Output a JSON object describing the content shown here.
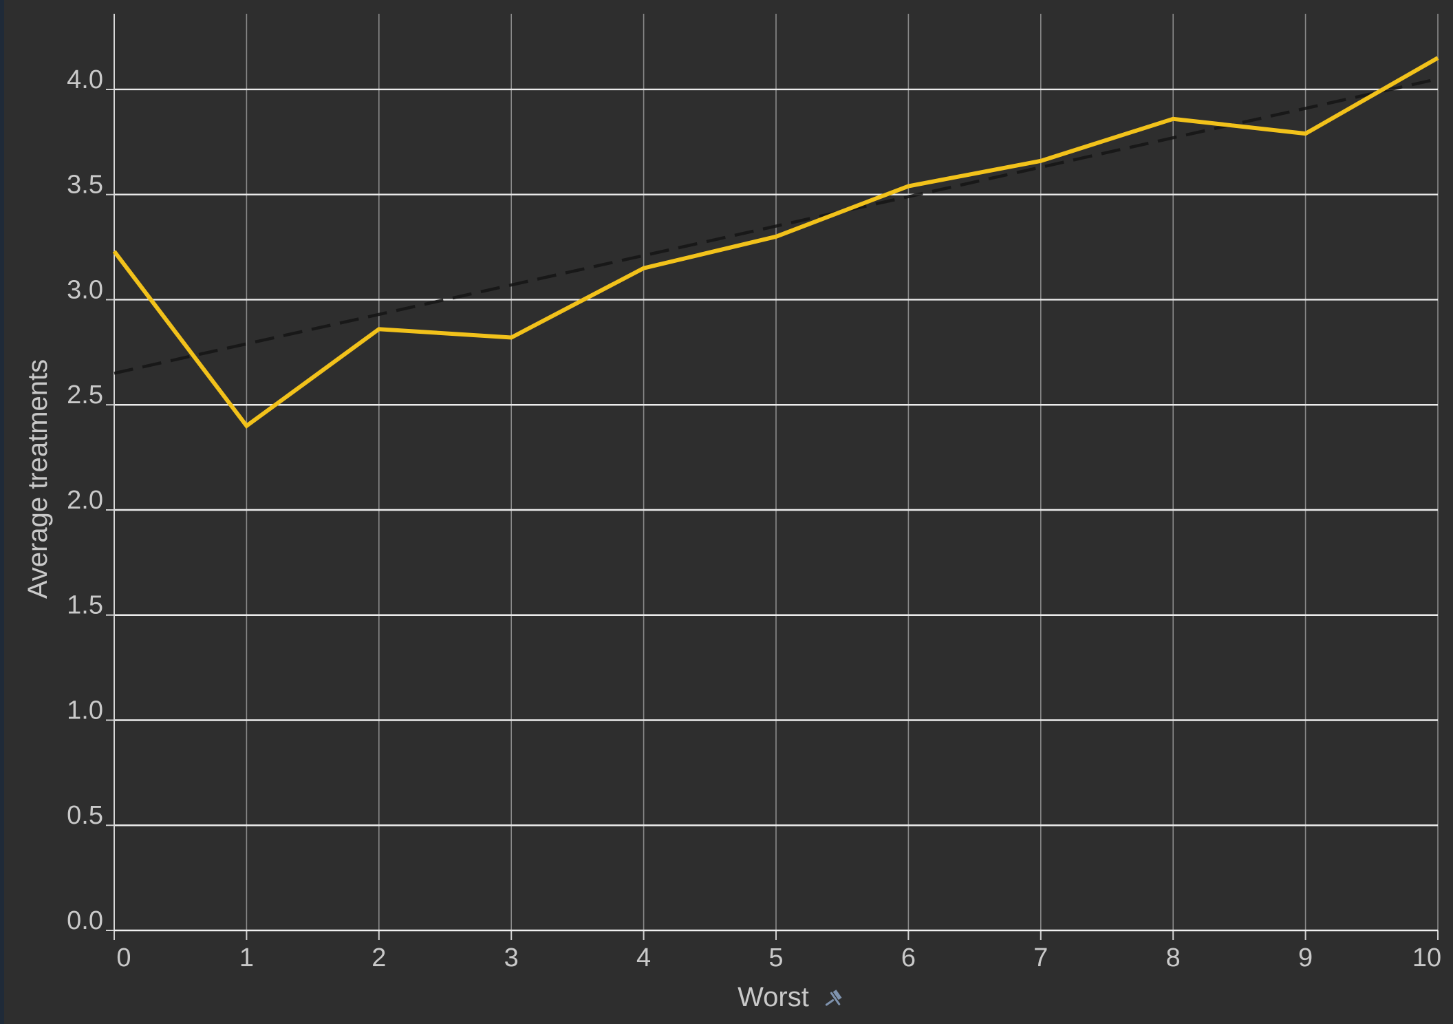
{
  "chart_data": {
    "type": "line",
    "xlabel": "Worst",
    "ylabel": "Average treatments",
    "x": [
      0,
      1,
      2,
      3,
      4,
      5,
      6,
      7,
      8,
      9,
      10
    ],
    "x_tick_labels": [
      "0",
      "1",
      "2",
      "3",
      "4",
      "5",
      "6",
      "7",
      "8",
      "9",
      "10"
    ],
    "y_tick_labels": [
      "0.0",
      "0.5",
      "1.0",
      "1.5",
      "2.0",
      "2.5",
      "3.0",
      "3.5",
      "4.0"
    ],
    "y_ticks": [
      0,
      0.5,
      1.0,
      1.5,
      2.0,
      2.5,
      3.0,
      3.5,
      4.0
    ],
    "xlim": [
      0,
      10
    ],
    "ylim": [
      0,
      4.36
    ],
    "grid": true,
    "series": [
      {
        "type": "line",
        "color": "#f2c21b",
        "values": [
          3.23,
          2.4,
          2.86,
          2.82,
          3.15,
          3.3,
          3.54,
          3.66,
          3.86,
          3.79,
          4.15
        ]
      }
    ],
    "trendline": {
      "style": "dashed",
      "color": "#151515",
      "x": [
        0,
        10
      ],
      "y": [
        2.65,
        4.05
      ]
    },
    "pin_icon": "pin-icon"
  }
}
